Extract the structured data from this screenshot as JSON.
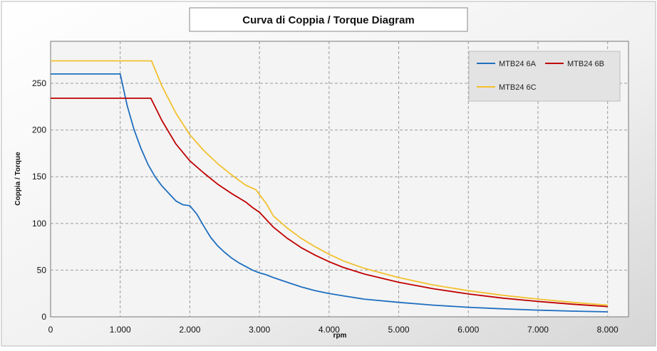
{
  "chart_data": {
    "type": "line",
    "title": "Curva di Coppia / Torque Diagram",
    "xlabel": "rpm",
    "ylabel": "Coppia / Torque",
    "xlim": [
      0,
      8300
    ],
    "ylim": [
      0,
      295
    ],
    "xticks": [
      0,
      1000,
      2000,
      3000,
      4000,
      5000,
      6000,
      7000,
      8000
    ],
    "xtick_labels": [
      "0",
      "1.000",
      "2.000",
      "3.000",
      "4.000",
      "5.000",
      "6.000",
      "7.000",
      "8.000"
    ],
    "yticks": [
      0,
      50,
      100,
      150,
      200,
      250
    ],
    "ytick_labels": [
      "0",
      "50",
      "100",
      "150",
      "200",
      "250"
    ],
    "grid": true,
    "legend_position": "top-right",
    "series": [
      {
        "name": "MTB24 6A",
        "color": "#1f6fc0",
        "x": [
          0,
          500,
          1000,
          1100,
          1200,
          1300,
          1400,
          1500,
          1600,
          1700,
          1800,
          1900,
          2000,
          2100,
          2200,
          2300,
          2400,
          2500,
          2600,
          2700,
          2800,
          2900,
          3000,
          3100,
          3200,
          3400,
          3600,
          3800,
          4000,
          4200,
          4500,
          5000,
          5500,
          6000,
          6500,
          7000,
          7500,
          8000
        ],
        "values": [
          260,
          260,
          260,
          226,
          200,
          180,
          163,
          150,
          140,
          132,
          124,
          120,
          119,
          110,
          97,
          85,
          76,
          69,
          63,
          58,
          54,
          50,
          47,
          45,
          42,
          37,
          32,
          28,
          25,
          22.5,
          19,
          15.5,
          12.5,
          10.2,
          8.5,
          7.2,
          6.1,
          5.3
        ]
      },
      {
        "name": "MTB24 6B",
        "color": "#c00000",
        "x": [
          0,
          500,
          1000,
          1440,
          1600,
          1800,
          2000,
          2200,
          2400,
          2600,
          2800,
          2900,
          3000,
          3200,
          3400,
          3600,
          3800,
          4000,
          4200,
          4500,
          5000,
          5500,
          6000,
          6500,
          7000,
          7500,
          8000
        ],
        "values": [
          234,
          234,
          234,
          234,
          210,
          185,
          167,
          154,
          142,
          132,
          123,
          117,
          112,
          96,
          84,
          74,
          66,
          59,
          53,
          46,
          37,
          30,
          24.5,
          20,
          16.5,
          13.5,
          11
        ]
      },
      {
        "name": "MTB24 6C",
        "color": "#f2c12e",
        "x": [
          0,
          500,
          1000,
          1450,
          1600,
          1800,
          2000,
          2200,
          2400,
          2600,
          2800,
          2950,
          3100,
          3200,
          3400,
          3600,
          3800,
          4000,
          4200,
          4500,
          5000,
          5500,
          6000,
          6500,
          7000,
          7500,
          8000
        ],
        "values": [
          274,
          274,
          274,
          274,
          247,
          218,
          195,
          178,
          164,
          152,
          141,
          136,
          121,
          108,
          95,
          84,
          75,
          67,
          60,
          52,
          42,
          34,
          28,
          23,
          19,
          15.5,
          12.5
        ]
      }
    ]
  }
}
